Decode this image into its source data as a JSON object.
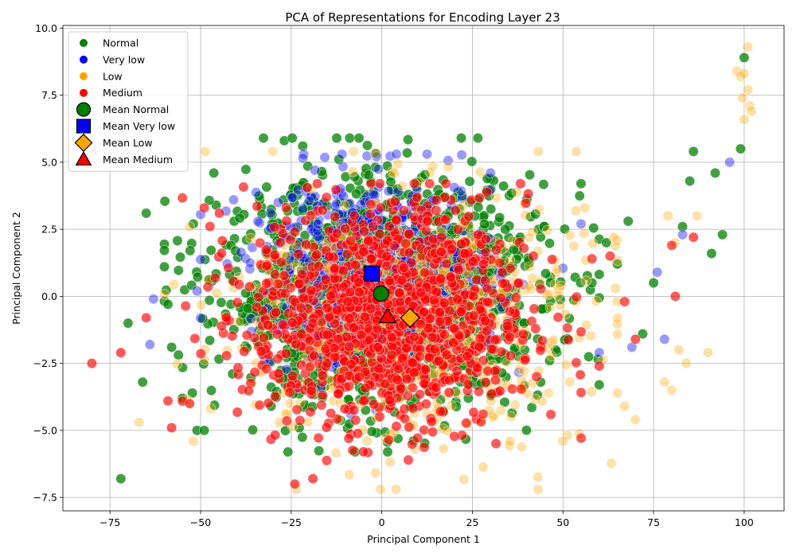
{
  "chart_data": {
    "type": "scatter",
    "title": "PCA of Representations for Encoding Layer 23",
    "xlabel": "Principal Component 1",
    "ylabel": "Principal Component 2",
    "xlim": [
      -88,
      111
    ],
    "ylim": [
      -8,
      10.1
    ],
    "xticks": [
      -75,
      -50,
      -25,
      0,
      25,
      50,
      75,
      100
    ],
    "yticks": [
      -7.5,
      -5.0,
      -2.5,
      0.0,
      2.5,
      5.0,
      7.5,
      10.0
    ],
    "xtick_labels": [
      "−75",
      "−50",
      "−25",
      "0",
      "25",
      "50",
      "75",
      "100"
    ],
    "ytick_labels": [
      "−7.5",
      "−5.0",
      "−2.5",
      "0.0",
      "2.5",
      "5.0",
      "7.5",
      "10.0"
    ],
    "grid": true,
    "legend_position": "top-left",
    "series": [
      {
        "name": "Normal",
        "color": "#008000",
        "opacity": 0.75,
        "cloud": {
          "count": 1400,
          "x_mean": 0,
          "x_sd": 22,
          "y_mean": 0.1,
          "y_sd": 2.1,
          "x_range": [
            -60,
            60
          ],
          "y_range": [
            -5.8,
            5.9
          ]
        },
        "outliers": [
          {
            "x": -72,
            "y": -6.8
          },
          {
            "x": -70,
            "y": -1.0
          },
          {
            "x": -65,
            "y": 3.1
          },
          {
            "x": -66,
            "y": -3.2
          },
          {
            "x": -60,
            "y": 1.1
          },
          {
            "x": -59,
            "y": -0.3
          },
          {
            "x": -58,
            "y": -1.9
          },
          {
            "x": -55,
            "y": -3.8
          },
          {
            "x": -52,
            "y": 2.7
          },
          {
            "x": -51,
            "y": -5.0
          },
          {
            "x": -49,
            "y": -5.0
          },
          {
            "x": 55,
            "y": 4.2
          },
          {
            "x": 58,
            "y": 0.5
          },
          {
            "x": 60,
            "y": -3.3
          },
          {
            "x": 62,
            "y": 2.0
          },
          {
            "x": 65,
            "y": 1.2
          },
          {
            "x": 68,
            "y": 2.8
          },
          {
            "x": 72,
            "y": -1.4
          },
          {
            "x": 75,
            "y": 0.5
          },
          {
            "x": 83,
            "y": 2.6
          },
          {
            "x": 85,
            "y": 4.3
          },
          {
            "x": 86,
            "y": 5.4
          },
          {
            "x": 91,
            "y": 1.6
          },
          {
            "x": 92,
            "y": 4.6
          },
          {
            "x": 94,
            "y": 2.3
          },
          {
            "x": 99,
            "y": 5.5
          },
          {
            "x": 100,
            "y": 8.9
          }
        ]
      },
      {
        "name": "Very low",
        "color": "#0000ff",
        "opacity": 0.4,
        "cloud": {
          "count": 500,
          "x_mean": -2.8,
          "x_sd": 17,
          "y_mean": 0.9,
          "y_sd": 1.8,
          "x_range": [
            -50,
            50
          ],
          "y_range": [
            -5.5,
            5.3
          ]
        },
        "outliers": [
          {
            "x": -63,
            "y": -0.1
          },
          {
            "x": -64,
            "y": -1.8
          },
          {
            "x": -51,
            "y": 0.2
          },
          {
            "x": 30,
            "y": 4.6
          },
          {
            "x": 55,
            "y": 2.7
          },
          {
            "x": 60,
            "y": -2.1
          },
          {
            "x": 69,
            "y": -1.9
          },
          {
            "x": 76,
            "y": 0.9
          },
          {
            "x": 78,
            "y": -1.6
          },
          {
            "x": 83,
            "y": 2.3
          },
          {
            "x": 96,
            "y": 5.0
          }
        ]
      },
      {
        "name": "Low",
        "color": "#ffa500",
        "opacity": 0.35,
        "cloud": {
          "count": 600,
          "x_mean": 7.8,
          "x_sd": 24,
          "y_mean": -0.8,
          "y_sd": 2.4,
          "x_range": [
            -60,
            65
          ],
          "y_range": [
            -7.2,
            5.4
          ]
        },
        "outliers": [
          {
            "x": -67,
            "y": -4.7
          },
          {
            "x": -53,
            "y": 2.6
          },
          {
            "x": -52,
            "y": -5.4
          },
          {
            "x": 50,
            "y": -5.4
          },
          {
            "x": 56,
            "y": 3.3
          },
          {
            "x": 64,
            "y": 2.2
          },
          {
            "x": 67,
            "y": -4.1
          },
          {
            "x": 70,
            "y": -4.6
          },
          {
            "x": 78,
            "y": -3.2
          },
          {
            "x": 79,
            "y": 3.0
          },
          {
            "x": 80,
            "y": -3.5
          },
          {
            "x": 81,
            "y": 2.0
          },
          {
            "x": 82,
            "y": -2.0
          },
          {
            "x": 84,
            "y": -2.5
          },
          {
            "x": 87,
            "y": 3.0
          },
          {
            "x": 90,
            "y": -2.1
          },
          {
            "x": 98,
            "y": 8.4
          },
          {
            "x": 99,
            "y": 8.2
          },
          {
            "x": 99.5,
            "y": 7.4
          },
          {
            "x": 100,
            "y": 6.6
          },
          {
            "x": 101,
            "y": 9.3
          },
          {
            "x": 101,
            "y": 7.7
          },
          {
            "x": 101.5,
            "y": 7.1
          },
          {
            "x": 102,
            "y": 6.9
          },
          {
            "x": 100,
            "y": 8.3
          }
        ]
      },
      {
        "name": "Medium",
        "color": "#ff0000",
        "opacity": 0.65,
        "cloud": {
          "count": 1100,
          "x_mean": 1.7,
          "x_sd": 19,
          "y_mean": -0.75,
          "y_sd": 2.1,
          "x_range": [
            -55,
            55
          ],
          "y_range": [
            -7.0,
            4.2
          ]
        },
        "outliers": [
          {
            "x": -80,
            "y": -2.5
          },
          {
            "x": -72,
            "y": -2.1
          },
          {
            "x": -65,
            "y": -0.8
          },
          {
            "x": -59,
            "y": -3.9
          },
          {
            "x": -58,
            "y": -4.9
          },
          {
            "x": -53,
            "y": -4.0
          },
          {
            "x": -49,
            "y": 3.3
          },
          {
            "x": -24,
            "y": -7.0
          },
          {
            "x": -19,
            "y": -6.8
          },
          {
            "x": 58,
            "y": 1.4
          },
          {
            "x": 60,
            "y": -2.6
          },
          {
            "x": 63,
            "y": 1.5
          },
          {
            "x": 67,
            "y": -0.2
          },
          {
            "x": 70,
            "y": -1.6
          },
          {
            "x": 80,
            "y": 1.9
          },
          {
            "x": 81,
            "y": 0.0
          },
          {
            "x": 86,
            "y": 2.2
          }
        ]
      }
    ],
    "means": [
      {
        "name": "Mean Normal",
        "x": -0.2,
        "y": 0.1,
        "marker": "circle",
        "color": "#008000"
      },
      {
        "name": "Mean Very low",
        "x": -2.8,
        "y": 0.85,
        "marker": "square",
        "color": "#0000ff"
      },
      {
        "name": "Mean Low",
        "x": 7.8,
        "y": -0.8,
        "marker": "diamond",
        "color": "#ffa500"
      },
      {
        "name": "Mean Medium",
        "x": 1.6,
        "y": -0.75,
        "marker": "triangle",
        "color": "#ff0000"
      }
    ]
  }
}
